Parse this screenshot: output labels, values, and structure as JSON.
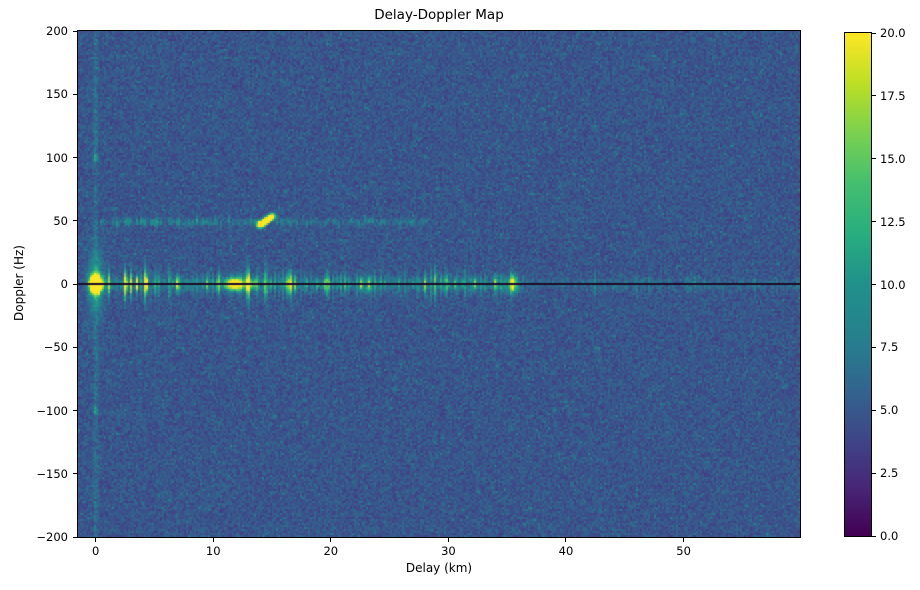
{
  "chart_data": {
    "type": "heatmap",
    "title": "Delay-Doppler Map",
    "xlabel": "Delay (km)",
    "ylabel": "Doppler (Hz)",
    "colormap": "viridis",
    "x_range_km": [
      -1.5,
      59.9
    ],
    "y_range_hz": [
      -200,
      200
    ],
    "color_range": [
      0.0,
      20.0
    ],
    "x_ticks": {
      "values": [
        0,
        10,
        20,
        30,
        40,
        50
      ],
      "labels": [
        "0",
        "10",
        "20",
        "30",
        "40",
        "50"
      ]
    },
    "y_ticks": {
      "values": [
        200,
        150,
        100,
        50,
        0,
        -50,
        -100,
        -150,
        -200
      ],
      "labels": [
        "200",
        "150",
        "100",
        "50",
        "0",
        "−50",
        "−100",
        "−150",
        "−200"
      ]
    },
    "colorbar_ticks": {
      "values": [
        0,
        2.5,
        5,
        7.5,
        10,
        12.5,
        15,
        17.5,
        20
      ],
      "labels": [
        "0.0",
        "2.5",
        "5.0",
        "7.5",
        "10.0",
        "12.5",
        "15.0",
        "17.5",
        "20.0"
      ]
    },
    "viridis_stops": [
      "#440154",
      "#482878",
      "#3e4989",
      "#31688e",
      "#26828e",
      "#21918c",
      "#28ae80",
      "#44bf70",
      "#7ad151",
      "#bddf26",
      "#fde725"
    ],
    "background_noise": {
      "mean": 4.8,
      "seed": 42
    },
    "features": [
      {
        "type": "vline",
        "delay": 0,
        "amp": 1.7,
        "sigma_km": 0.13
      },
      {
        "type": "streak",
        "doppler": 49,
        "delay_start": 0.3,
        "delay_end": 28.5,
        "amp": 4.6,
        "sigma_hz": 1.8,
        "gap_prob": 0.18,
        "fade_after": 14
      },
      {
        "type": "clutter_ridge",
        "doppler": 0,
        "delay_start": -0.7,
        "delay_end": 36,
        "amp": 6.5,
        "sigma_hz": 4,
        "spike_prob": 0.2,
        "spike_amp": 9
      },
      {
        "type": "clutter_ridge",
        "doppler": 0,
        "delay_start": 36,
        "delay_end": 59.9,
        "amp": 2.4,
        "sigma_hz": 2.6,
        "spike_prob": 0.07,
        "spike_amp": 2.5
      },
      {
        "type": "blob",
        "delay": 0,
        "doppler": 0,
        "amp": 38,
        "sigma_km": 0.32,
        "sigma_hz": 4.2
      },
      {
        "type": "blob",
        "delay": 0,
        "doppler": 0,
        "amp": 6,
        "sigma_km": 0.45,
        "sigma_hz": 16
      },
      {
        "type": "blob",
        "delay": 11.8,
        "doppler": 0,
        "amp": 20,
        "sigma_km": 0.5,
        "sigma_hz": 3.2
      },
      {
        "type": "blob",
        "delay": 13.1,
        "doppler": 0,
        "amp": 10,
        "sigma_km": 0.35,
        "sigma_hz": 2.8
      },
      {
        "type": "blob",
        "delay": 35.5,
        "doppler": 0,
        "amp": 10,
        "sigma_km": 0.3,
        "sigma_hz": 4.5
      },
      {
        "type": "blob",
        "delay": 0,
        "doppler": 100,
        "amp": 6.5,
        "sigma_km": 0.12,
        "sigma_hz": 2.2
      },
      {
        "type": "blob",
        "delay": 0,
        "doppler": -100,
        "amp": 6.0,
        "sigma_km": 0.12,
        "sigma_hz": 2.2
      },
      {
        "type": "slant_target",
        "d0": 13.9,
        "f0": 46,
        "d1": 15.1,
        "f1": 54,
        "amp": 17,
        "sigma_km": 0.18,
        "sigma_hz": 1.5
      },
      {
        "type": "dark_hline",
        "doppler": 0,
        "half_width_hz": 1.1,
        "value": 1.2
      },
      {
        "type": "axhline",
        "doppler": 0,
        "color": "#000000",
        "linewidth": 1.4
      }
    ]
  }
}
